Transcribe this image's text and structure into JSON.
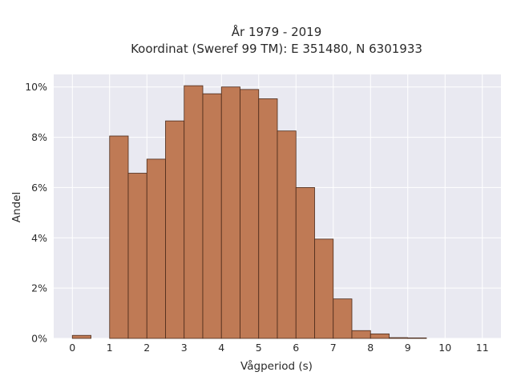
{
  "chart_data": {
    "type": "bar",
    "title_line1": "År 1979 - 2019",
    "title_line2": "Koordinat (Sweref 99 TM): E 351480, N 6301933",
    "xlabel": "Vågperiod (s)",
    "ylabel": "Andel",
    "bin_width": 0.5,
    "bins": [
      {
        "x0": 0.0,
        "value": 0.12
      },
      {
        "x0": 0.5,
        "value": 0.0
      },
      {
        "x0": 1.0,
        "value": 8.05
      },
      {
        "x0": 1.5,
        "value": 6.57
      },
      {
        "x0": 2.0,
        "value": 7.13
      },
      {
        "x0": 2.5,
        "value": 8.65
      },
      {
        "x0": 3.0,
        "value": 10.05
      },
      {
        "x0": 3.5,
        "value": 9.73
      },
      {
        "x0": 4.0,
        "value": 10.0
      },
      {
        "x0": 4.5,
        "value": 9.9
      },
      {
        "x0": 5.0,
        "value": 9.53
      },
      {
        "x0": 5.5,
        "value": 8.25
      },
      {
        "x0": 6.0,
        "value": 6.0
      },
      {
        "x0": 6.5,
        "value": 3.95
      },
      {
        "x0": 7.0,
        "value": 1.57
      },
      {
        "x0": 7.5,
        "value": 0.31
      },
      {
        "x0": 8.0,
        "value": 0.18
      },
      {
        "x0": 8.5,
        "value": 0.03
      },
      {
        "x0": 9.0,
        "value": 0.02
      }
    ],
    "xlim": [
      -0.5,
      11.5
    ],
    "ylim": [
      0,
      10.5
    ],
    "x_ticks": [
      {
        "v": 0,
        "label": "0"
      },
      {
        "v": 1,
        "label": "1"
      },
      {
        "v": 2,
        "label": "2"
      },
      {
        "v": 3,
        "label": "3"
      },
      {
        "v": 4,
        "label": "4"
      },
      {
        "v": 5,
        "label": "5"
      },
      {
        "v": 6,
        "label": "6"
      },
      {
        "v": 7,
        "label": "7"
      },
      {
        "v": 8,
        "label": "8"
      },
      {
        "v": 9,
        "label": "9"
      },
      {
        "v": 10,
        "label": "10"
      },
      {
        "v": 11,
        "label": "11"
      }
    ],
    "y_ticks": [
      {
        "v": 0,
        "label": "0%"
      },
      {
        "v": 2,
        "label": "2%"
      },
      {
        "v": 4,
        "label": "4%"
      },
      {
        "v": 6,
        "label": "6%"
      },
      {
        "v": 8,
        "label": "8%"
      },
      {
        "v": 10,
        "label": "10%"
      }
    ],
    "grid": true,
    "colors": {
      "bar_fill": "#bf7a55",
      "bar_edge": "#4a2a1a",
      "plot_bg": "#e9e9f1",
      "grid": "#ffffff"
    }
  }
}
